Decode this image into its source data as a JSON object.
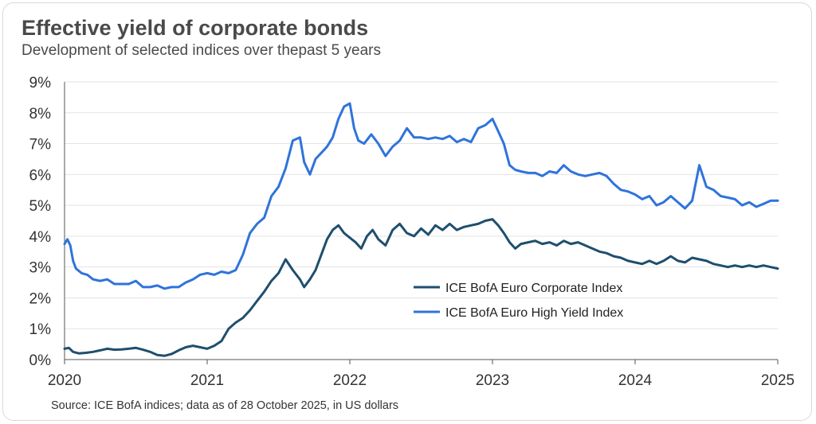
{
  "header": {
    "title": "Effective yield of corporate bonds",
    "subtitle": "Development of selected indices over thepast 5 years"
  },
  "footer": {
    "source": "Source: ICE BofA indices; data as of 28 October 2025, in US dollars"
  },
  "colors": {
    "corporate": "#1f4e6e",
    "high_yield": "#2f73db",
    "grid": "#e3e3e3",
    "axis": "#555555"
  },
  "chart_data": {
    "type": "line",
    "title": "Effective yield of corporate bonds",
    "subtitle": "Development of selected indices over thepast 5 years",
    "xlabel": "",
    "ylabel": "",
    "xlim": [
      2020,
      2025
    ],
    "ylim": [
      0,
      9
    ],
    "x_ticks": [
      "2020",
      "2021",
      "2022",
      "2023",
      "2024",
      "2025"
    ],
    "y_ticks": [
      "0%",
      "1%",
      "2%",
      "3%",
      "4%",
      "5%",
      "6%",
      "7%",
      "8%",
      "9%"
    ],
    "grid": "horizontal",
    "legend_position": "center-right",
    "series": [
      {
        "name": "ICE BofA Euro Corporate Index",
        "x": [
          2020.0,
          2020.03,
          2020.06,
          2020.1,
          2020.15,
          2020.2,
          2020.25,
          2020.3,
          2020.35,
          2020.4,
          2020.45,
          2020.5,
          2020.55,
          2020.6,
          2020.65,
          2020.7,
          2020.75,
          2020.8,
          2020.85,
          2020.9,
          2020.95,
          2021.0,
          2021.05,
          2021.1,
          2021.15,
          2021.2,
          2021.25,
          2021.3,
          2021.35,
          2021.4,
          2021.45,
          2021.5,
          2021.55,
          2021.6,
          2021.65,
          2021.68,
          2021.72,
          2021.76,
          2021.8,
          2021.84,
          2021.88,
          2021.92,
          2021.96,
          2022.0,
          2022.04,
          2022.08,
          2022.12,
          2022.16,
          2022.2,
          2022.25,
          2022.3,
          2022.35,
          2022.4,
          2022.45,
          2022.5,
          2022.55,
          2022.6,
          2022.65,
          2022.7,
          2022.75,
          2022.8,
          2022.85,
          2022.9,
          2022.95,
          2023.0,
          2023.04,
          2023.08,
          2023.12,
          2023.16,
          2023.2,
          2023.25,
          2023.3,
          2023.35,
          2023.4,
          2023.45,
          2023.5,
          2023.55,
          2023.6,
          2023.65,
          2023.7,
          2023.75,
          2023.8,
          2023.85,
          2023.9,
          2023.95,
          2024.0,
          2024.05,
          2024.1,
          2024.15,
          2024.2,
          2024.25,
          2024.3,
          2024.35,
          2024.4,
          2024.45,
          2024.5,
          2024.55,
          2024.6,
          2024.65,
          2024.7,
          2024.75,
          2024.8,
          2024.85,
          2024.9,
          2024.95,
          2025.0
        ],
        "y": [
          0.35,
          0.38,
          0.25,
          0.2,
          0.22,
          0.25,
          0.3,
          0.35,
          0.32,
          0.33,
          0.35,
          0.38,
          0.32,
          0.25,
          0.15,
          0.12,
          0.18,
          0.3,
          0.4,
          0.45,
          0.4,
          0.35,
          0.45,
          0.6,
          1.0,
          1.2,
          1.35,
          1.6,
          1.9,
          2.2,
          2.55,
          2.8,
          3.25,
          2.9,
          2.6,
          2.35,
          2.6,
          2.9,
          3.4,
          3.9,
          4.2,
          4.35,
          4.1,
          3.95,
          3.8,
          3.6,
          4.0,
          4.2,
          3.9,
          3.7,
          4.2,
          4.4,
          4.1,
          4.0,
          4.25,
          4.05,
          4.35,
          4.2,
          4.4,
          4.2,
          4.3,
          4.35,
          4.4,
          4.5,
          4.55,
          4.35,
          4.1,
          3.8,
          3.6,
          3.75,
          3.8,
          3.85,
          3.75,
          3.8,
          3.7,
          3.85,
          3.75,
          3.8,
          3.7,
          3.6,
          3.5,
          3.45,
          3.35,
          3.3,
          3.2,
          3.15,
          3.1,
          3.2,
          3.1,
          3.2,
          3.35,
          3.2,
          3.15,
          3.3,
          3.25,
          3.2,
          3.1,
          3.05,
          3.0,
          3.05,
          3.0,
          3.05,
          3.0,
          3.05,
          3.0,
          2.95
        ]
      },
      {
        "name": "ICE BofA Euro High Yield Index",
        "x": [
          2020.0,
          2020.02,
          2020.04,
          2020.06,
          2020.08,
          2020.12,
          2020.16,
          2020.2,
          2020.25,
          2020.3,
          2020.35,
          2020.4,
          2020.45,
          2020.5,
          2020.55,
          2020.6,
          2020.65,
          2020.7,
          2020.75,
          2020.8,
          2020.85,
          2020.9,
          2020.95,
          2021.0,
          2021.05,
          2021.1,
          2021.15,
          2021.2,
          2021.25,
          2021.3,
          2021.35,
          2021.4,
          2021.45,
          2021.5,
          2021.55,
          2021.6,
          2021.65,
          2021.68,
          2021.72,
          2021.76,
          2021.8,
          2021.84,
          2021.88,
          2021.92,
          2021.96,
          2022.0,
          2022.03,
          2022.06,
          2022.1,
          2022.15,
          2022.2,
          2022.25,
          2022.3,
          2022.35,
          2022.4,
          2022.45,
          2022.5,
          2022.55,
          2022.6,
          2022.65,
          2022.7,
          2022.75,
          2022.8,
          2022.85,
          2022.9,
          2022.95,
          2023.0,
          2023.04,
          2023.08,
          2023.12,
          2023.16,
          2023.2,
          2023.25,
          2023.3,
          2023.35,
          2023.4,
          2023.45,
          2023.5,
          2023.55,
          2023.6,
          2023.65,
          2023.7,
          2023.75,
          2023.8,
          2023.85,
          2023.9,
          2023.95,
          2024.0,
          2024.05,
          2024.1,
          2024.15,
          2024.2,
          2024.25,
          2024.3,
          2024.35,
          2024.4,
          2024.45,
          2024.5,
          2024.55,
          2024.6,
          2024.65,
          2024.7,
          2024.75,
          2024.8,
          2024.85,
          2024.9,
          2024.95,
          2025.0
        ],
        "y": [
          3.75,
          3.9,
          3.7,
          3.2,
          2.95,
          2.8,
          2.75,
          2.6,
          2.55,
          2.6,
          2.45,
          2.45,
          2.45,
          2.55,
          2.35,
          2.35,
          2.4,
          2.3,
          2.35,
          2.35,
          2.5,
          2.6,
          2.75,
          2.8,
          2.75,
          2.85,
          2.8,
          2.9,
          3.4,
          4.1,
          4.4,
          4.6,
          5.3,
          5.6,
          6.2,
          7.1,
          7.2,
          6.4,
          6.0,
          6.5,
          6.7,
          6.9,
          7.2,
          7.8,
          8.2,
          8.3,
          7.5,
          7.1,
          7.0,
          7.3,
          7.0,
          6.6,
          6.9,
          7.1,
          7.5,
          7.2,
          7.2,
          7.15,
          7.2,
          7.15,
          7.25,
          7.05,
          7.15,
          7.05,
          7.5,
          7.6,
          7.8,
          7.4,
          7.0,
          6.3,
          6.15,
          6.1,
          6.05,
          6.05,
          5.95,
          6.1,
          6.05,
          6.3,
          6.1,
          6.0,
          5.95,
          6.0,
          6.05,
          5.95,
          5.7,
          5.5,
          5.45,
          5.35,
          5.2,
          5.3,
          5.0,
          5.1,
          5.3,
          5.1,
          4.9,
          5.15,
          6.3,
          5.6,
          5.5,
          5.3,
          5.25,
          5.2,
          5.0,
          5.1,
          4.95,
          5.05,
          5.15,
          5.15
        ]
      }
    ]
  }
}
